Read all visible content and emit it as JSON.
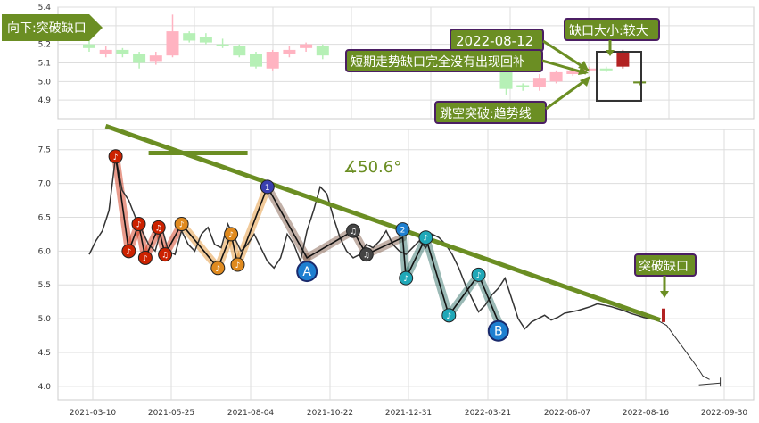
{
  "colors": {
    "up_candle": "#ffb3c1",
    "down_candle": "#b6f0b6",
    "gap_up": "#b22222",
    "gap_down": "#6b8e23",
    "trend_line": "#6b8e23",
    "label_bg": "#6b8e23",
    "label_border": "#4b1e63",
    "price_line": "#333333",
    "grid": "#dddddd"
  },
  "chart_data": [
    {
      "type": "candlestick",
      "panel": "top",
      "ylim": [
        4.8,
        5.4
      ],
      "yticks": [
        4.9,
        5.0,
        5.1,
        5.2,
        5.3,
        5.4
      ],
      "grid": true,
      "annotations": {
        "breakdown_label": "向下:突破缺口",
        "date_label": "2022-08-12",
        "gap_size_label": "缺口大小:较大",
        "short_trend_label": "短期走势缺口完全没有出现回补",
        "jump_label": "跳空突破:趋势线"
      },
      "candles": [
        {
          "x": 0,
          "open": 5.2,
          "close": 5.18,
          "high": 5.22,
          "low": 5.16
        },
        {
          "x": 1,
          "open": 5.15,
          "close": 5.17,
          "high": 5.19,
          "low": 5.13
        },
        {
          "x": 2,
          "open": 5.17,
          "close": 5.15,
          "high": 5.18,
          "low": 5.13
        },
        {
          "x": 3,
          "open": 5.15,
          "close": 5.1,
          "high": 5.16,
          "low": 5.07
        },
        {
          "x": 4,
          "open": 5.11,
          "close": 5.14,
          "high": 5.16,
          "low": 5.09
        },
        {
          "x": 5,
          "open": 5.14,
          "close": 5.27,
          "high": 5.36,
          "low": 5.13
        },
        {
          "x": 6,
          "open": 5.26,
          "close": 5.22,
          "high": 5.27,
          "low": 5.21
        },
        {
          "x": 7,
          "open": 5.24,
          "close": 5.21,
          "high": 5.26,
          "low": 5.2
        },
        {
          "x": 8,
          "open": 5.2,
          "close": 5.19,
          "high": 5.23,
          "low": 5.18
        },
        {
          "x": 9,
          "open": 5.19,
          "close": 5.14,
          "high": 5.2,
          "low": 5.13
        },
        {
          "x": 10,
          "open": 5.15,
          "close": 5.08,
          "high": 5.16,
          "low": 5.07
        },
        {
          "x": 11,
          "open": 5.07,
          "close": 5.16,
          "high": 5.17,
          "low": 5.06
        },
        {
          "x": 12,
          "open": 5.15,
          "close": 5.17,
          "high": 5.19,
          "low": 5.13
        },
        {
          "x": 13,
          "open": 5.18,
          "close": 5.2,
          "high": 5.21,
          "low": 5.16
        },
        {
          "x": 14,
          "open": 5.19,
          "close": 5.14,
          "high": 5.2,
          "low": 5.12
        },
        {
          "x": 25,
          "open": 5.08,
          "close": 4.96,
          "high": 5.1,
          "low": 4.93
        },
        {
          "x": 26,
          "open": 4.98,
          "close": 4.97,
          "high": 4.99,
          "low": 4.95
        },
        {
          "x": 27,
          "open": 4.97,
          "close": 5.02,
          "high": 5.04,
          "low": 4.95
        },
        {
          "x": 28,
          "open": 5.0,
          "close": 5.05,
          "high": 5.06,
          "low": 4.99
        },
        {
          "x": 29,
          "open": 5.04,
          "close": 5.06,
          "high": 5.08,
          "low": 5.03
        },
        {
          "x": 30,
          "open": 5.06,
          "close": 5.07,
          "high": 5.08,
          "low": 5.05
        },
        {
          "x": 31,
          "open": 5.07,
          "close": 5.06,
          "high": 5.08,
          "low": 5.05
        },
        {
          "x": 32,
          "open": 5.08,
          "close": 5.16,
          "high": 5.17,
          "low": 5.07,
          "gap": "up"
        },
        {
          "x": 33,
          "open": 5.0,
          "close": 4.99,
          "high": 5.0,
          "low": 4.98,
          "gap": "down"
        }
      ]
    },
    {
      "type": "line",
      "panel": "bottom",
      "ylim": [
        3.8,
        7.8
      ],
      "yticks": [
        4.0,
        4.5,
        5.0,
        5.5,
        6.0,
        6.5,
        7.0,
        7.5
      ],
      "xticks": [
        "2021-03-10",
        "2021-05-25",
        "2021-08-04",
        "2021-10-22",
        "2021-12-31",
        "2022-03-21",
        "2022-06-07",
        "2022-08-16",
        "2022-09-30"
      ],
      "grid": true,
      "angle_label": "∡50.6°",
      "gap_label": "突破缺口",
      "wave_labels": {
        "A": "A",
        "B": "B"
      },
      "marker_symbols": {
        "note": "♪",
        "note2": "♫",
        "one": "1",
        "two": "2"
      },
      "price_series": [
        [
          0,
          5.95
        ],
        [
          0.2,
          6.15
        ],
        [
          0.4,
          6.3
        ],
        [
          0.6,
          6.6
        ],
        [
          0.8,
          7.4
        ],
        [
          1.0,
          6.9
        ],
        [
          1.2,
          6.75
        ],
        [
          1.4,
          6.5
        ],
        [
          1.6,
          6.3
        ],
        [
          1.8,
          6.1
        ],
        [
          2.0,
          6.0
        ],
        [
          2.2,
          6.35
        ],
        [
          2.4,
          6.0
        ],
        [
          2.6,
          5.95
        ],
        [
          2.8,
          6.3
        ],
        [
          3.0,
          6.1
        ],
        [
          3.2,
          6.0
        ],
        [
          3.4,
          6.25
        ],
        [
          3.6,
          6.35
        ],
        [
          3.8,
          6.1
        ],
        [
          4.0,
          6.05
        ],
        [
          4.2,
          6.4
        ],
        [
          4.4,
          6.2
        ],
        [
          4.6,
          6.0
        ],
        [
          4.8,
          6.1
        ],
        [
          5.0,
          6.25
        ],
        [
          5.2,
          6.05
        ],
        [
          5.4,
          5.85
        ],
        [
          5.6,
          5.75
        ],
        [
          5.8,
          5.9
        ],
        [
          6.0,
          6.25
        ],
        [
          6.2,
          6.1
        ],
        [
          6.4,
          5.85
        ],
        [
          6.6,
          6.3
        ],
        [
          6.8,
          6.6
        ],
        [
          7.0,
          6.95
        ],
        [
          7.2,
          6.85
        ],
        [
          7.4,
          6.5
        ],
        [
          7.6,
          6.2
        ],
        [
          7.8,
          6.0
        ],
        [
          8.0,
          5.9
        ],
        [
          8.2,
          5.95
        ],
        [
          8.4,
          6.1
        ],
        [
          8.6,
          6.05
        ],
        [
          8.8,
          6.15
        ],
        [
          9.0,
          6.3
        ],
        [
          9.2,
          6.1
        ],
        [
          9.4,
          6.0
        ],
        [
          9.6,
          5.95
        ],
        [
          9.8,
          6.05
        ],
        [
          10.0,
          6.15
        ],
        [
          10.2,
          6.05
        ],
        [
          10.4,
          6.25
        ],
        [
          10.6,
          6.2
        ],
        [
          10.8,
          6.1
        ],
        [
          11.0,
          5.95
        ],
        [
          11.2,
          5.75
        ],
        [
          11.4,
          5.5
        ],
        [
          11.6,
          5.3
        ],
        [
          11.8,
          5.1
        ],
        [
          12.0,
          5.2
        ],
        [
          12.2,
          5.35
        ],
        [
          12.4,
          5.45
        ],
        [
          12.6,
          5.6
        ],
        [
          12.8,
          5.3
        ],
        [
          13.0,
          5.0
        ],
        [
          13.2,
          4.85
        ],
        [
          13.4,
          4.95
        ],
        [
          13.6,
          5.0
        ],
        [
          13.8,
          5.05
        ],
        [
          14.0,
          4.98
        ],
        [
          14.2,
          5.02
        ],
        [
          14.4,
          5.08
        ],
        [
          14.6,
          5.1
        ],
        [
          14.8,
          5.12
        ],
        [
          15.0,
          5.15
        ],
        [
          15.2,
          5.18
        ],
        [
          15.4,
          5.22
        ],
        [
          15.6,
          5.2
        ],
        [
          15.8,
          5.18
        ],
        [
          16.0,
          5.15
        ],
        [
          16.2,
          5.12
        ],
        [
          16.4,
          5.08
        ],
        [
          16.6,
          5.05
        ],
        [
          16.8,
          5.02
        ],
        [
          17.0,
          5.0
        ],
        [
          17.2,
          4.98
        ]
      ],
      "forecast_series": [
        [
          17.2,
          4.98
        ],
        [
          17.5,
          4.9
        ],
        [
          17.8,
          4.7
        ],
        [
          18.1,
          4.5
        ],
        [
          18.4,
          4.3
        ],
        [
          18.6,
          4.15
        ],
        [
          18.8,
          4.1
        ]
      ],
      "trend_line": [
        [
          0.5,
          7.85
        ],
        [
          17.3,
          4.98
        ]
      ],
      "angle_ref_line": [
        [
          1.8,
          7.45
        ],
        [
          4.8,
          7.45
        ]
      ],
      "wave_path": [
        [
          0.8,
          7.4
        ],
        [
          1.2,
          6.0
        ],
        [
          1.5,
          6.4
        ],
        [
          1.7,
          5.9
        ],
        [
          2.1,
          6.35
        ],
        [
          2.3,
          5.95
        ],
        [
          2.8,
          6.4
        ],
        [
          3.9,
          5.75
        ],
        [
          4.3,
          6.25
        ],
        [
          4.5,
          5.8
        ],
        [
          5.4,
          6.95
        ],
        [
          6.6,
          5.9
        ],
        [
          8.0,
          6.3
        ],
        [
          8.4,
          5.95
        ],
        [
          9.5,
          6.2
        ],
        [
          9.6,
          5.6
        ],
        [
          10.2,
          6.2
        ],
        [
          10.9,
          5.05
        ],
        [
          11.8,
          5.65
        ],
        [
          12.4,
          4.95
        ]
      ],
      "markers": [
        {
          "x": 0.8,
          "y": 7.4,
          "color": "#cc2200",
          "symbol": "note"
        },
        {
          "x": 1.2,
          "y": 6.0,
          "color": "#cc2200",
          "symbol": "note"
        },
        {
          "x": 1.5,
          "y": 6.4,
          "color": "#cc2200",
          "symbol": "note"
        },
        {
          "x": 1.7,
          "y": 5.9,
          "color": "#cc2200",
          "symbol": "note"
        },
        {
          "x": 2.1,
          "y": 6.35,
          "color": "#cc2200",
          "symbol": "note2"
        },
        {
          "x": 2.3,
          "y": 5.95,
          "color": "#cc2200",
          "symbol": "note2"
        },
        {
          "x": 2.8,
          "y": 6.4,
          "color": "#e08a1e",
          "symbol": "note"
        },
        {
          "x": 3.9,
          "y": 5.75,
          "color": "#e08a1e",
          "symbol": "note"
        },
        {
          "x": 4.3,
          "y": 6.25,
          "color": "#e08a1e",
          "symbol": "note"
        },
        {
          "x": 4.5,
          "y": 5.8,
          "color": "#e08a1e",
          "symbol": "note"
        },
        {
          "x": 5.4,
          "y": 6.95,
          "color": "#3a3fb0",
          "symbol": "one"
        },
        {
          "x": 8.0,
          "y": 6.3,
          "color": "#444444",
          "symbol": "note2"
        },
        {
          "x": 8.4,
          "y": 5.95,
          "color": "#444444",
          "symbol": "note2"
        },
        {
          "x": 9.5,
          "y": 6.32,
          "color": "#1e7fd0",
          "symbol": "two"
        },
        {
          "x": 9.6,
          "y": 5.6,
          "color": "#20a8b8",
          "symbol": "note"
        },
        {
          "x": 10.2,
          "y": 6.2,
          "color": "#20a8b8",
          "symbol": "note"
        },
        {
          "x": 10.9,
          "y": 5.05,
          "color": "#20a8b8",
          "symbol": "note"
        },
        {
          "x": 11.8,
          "y": 5.65,
          "color": "#20a8b8",
          "symbol": "note"
        }
      ],
      "big_markers": [
        {
          "label": "A",
          "x": 6.6,
          "y": 5.7
        },
        {
          "label": "B",
          "x": 12.4,
          "y": 4.82
        }
      ]
    }
  ]
}
